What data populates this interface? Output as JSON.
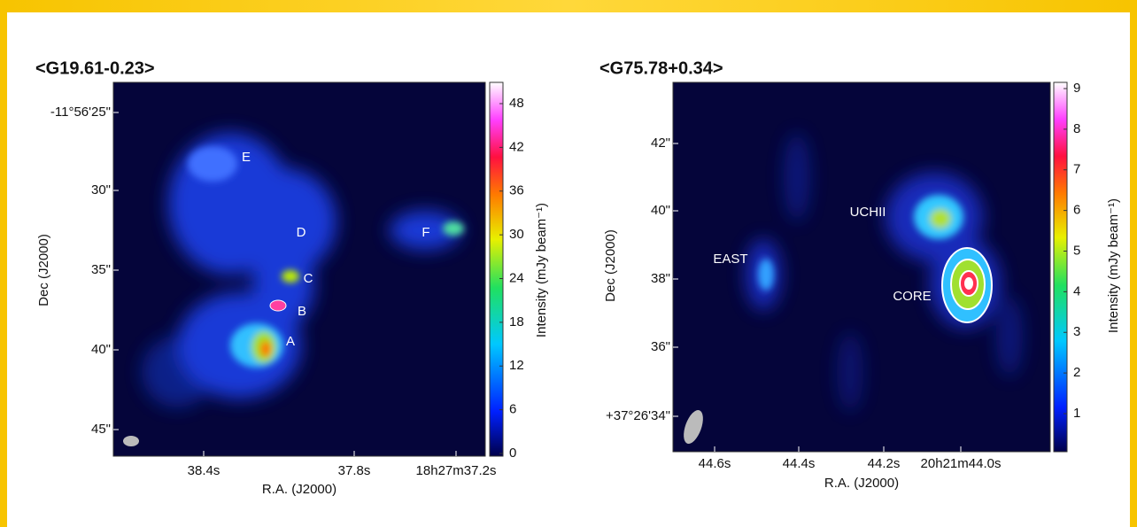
{
  "panels": [
    {
      "title": "<G19.61-0.23>",
      "x_label": "R.A. (J2000)",
      "y_label": "Dec (J2000)",
      "colorbar_label": "Intensity (mJy beam⁻¹)",
      "y_ticks": [
        "-11°56'25\"",
        "30\"",
        "35\"",
        "40\"",
        "45\""
      ],
      "x_ticks": [
        "38.4s",
        "37.8s",
        "18h27m37.2s"
      ],
      "colorbar_ticks": [
        "48",
        "42",
        "36",
        "30",
        "24",
        "18",
        "12",
        "6",
        "0"
      ],
      "regions": [
        "E",
        "D",
        "C",
        "B",
        "A",
        "F"
      ]
    },
    {
      "title": "<G75.78+0.34>",
      "x_label": "R.A. (J2000)",
      "y_label": "Dec (J2000)",
      "colorbar_label": "Intensity (mJy beam⁻¹)",
      "y_ticks": [
        "42\"",
        "40\"",
        "38\"",
        "36\"",
        "+37°26'34\""
      ],
      "x_ticks": [
        "44.6s",
        "44.4s",
        "44.2s",
        "20h21m44.0s"
      ],
      "colorbar_ticks": [
        "9",
        "8",
        "7",
        "6",
        "5",
        "4",
        "3",
        "2",
        "1"
      ],
      "regions": [
        "EAST",
        "UCHII",
        "CORE"
      ]
    }
  ]
}
